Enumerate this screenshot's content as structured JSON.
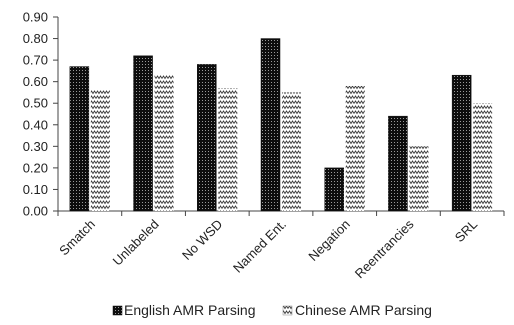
{
  "chart_data": {
    "type": "bar",
    "title": "",
    "xlabel": "",
    "ylabel": "",
    "ylim": [
      0,
      0.9
    ],
    "yticks": [
      "0.00",
      "0.10",
      "0.20",
      "0.30",
      "0.40",
      "0.50",
      "0.60",
      "0.70",
      "0.80",
      "0.90"
    ],
    "grid": false,
    "legend_position": "bottom",
    "categories": [
      "Smatch",
      "Unlabeled",
      "No WSD",
      "Named Ent.",
      "Negation",
      "Reentrancies",
      "SRL"
    ],
    "series": [
      {
        "name": "English AMR Parsing",
        "values": [
          0.67,
          0.72,
          0.68,
          0.8,
          0.2,
          0.44,
          0.63
        ],
        "pattern": "dense-dots-on-black",
        "color": "#111111"
      },
      {
        "name": "Chinese AMR Parsing",
        "values": [
          0.56,
          0.63,
          0.57,
          0.55,
          0.58,
          0.3,
          0.5
        ],
        "pattern": "zigzag-on-white",
        "color": "#111111"
      }
    ]
  }
}
